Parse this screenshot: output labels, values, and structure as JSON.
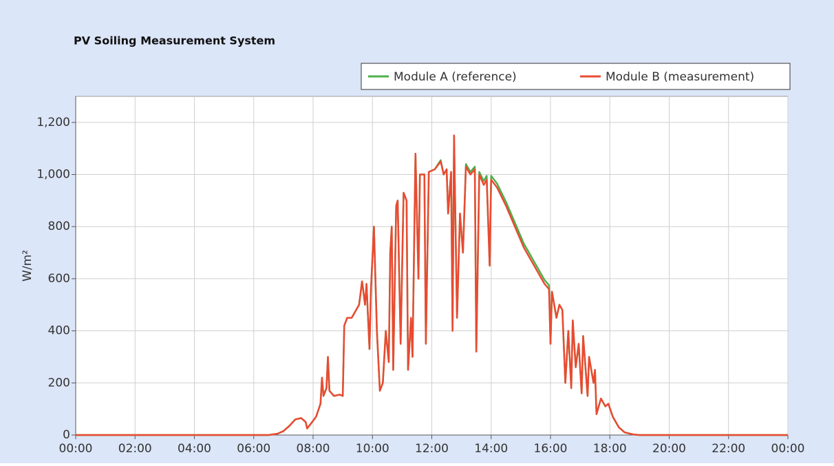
{
  "chart_data": {
    "type": "line",
    "title": "PV Soiling Measurement System",
    "ylabel": "W/m²",
    "x": [
      0,
      6.5,
      6.8,
      7.0,
      7.2,
      7.4,
      7.6,
      7.75,
      7.8,
      7.9,
      8.1,
      8.25,
      8.3,
      8.35,
      8.45,
      8.5,
      8.55,
      8.7,
      8.9,
      9.0,
      9.05,
      9.15,
      9.3,
      9.45,
      9.55,
      9.65,
      9.75,
      9.8,
      9.9,
      9.95,
      10.05,
      10.15,
      10.25,
      10.35,
      10.45,
      10.55,
      10.6,
      10.65,
      10.7,
      10.8,
      10.85,
      10.95,
      11.05,
      11.15,
      11.2,
      11.3,
      11.35,
      11.45,
      11.55,
      11.6,
      11.75,
      11.8,
      11.9,
      12.1,
      12.3,
      12.4,
      12.5,
      12.55,
      12.65,
      12.7,
      12.75,
      12.85,
      12.95,
      13.05,
      13.15,
      13.3,
      13.45,
      13.5,
      13.6,
      13.75,
      13.85,
      13.95,
      14.0,
      14.2,
      14.5,
      14.8,
      15.1,
      15.4,
      15.8,
      15.95,
      16.0,
      16.05,
      16.2,
      16.3,
      16.4,
      16.5,
      16.6,
      16.7,
      16.75,
      16.85,
      16.95,
      17.05,
      17.1,
      17.25,
      17.3,
      17.45,
      17.5,
      17.55,
      17.7,
      17.85,
      17.95,
      18.1,
      18.3,
      18.5,
      18.8,
      19.0,
      24
    ],
    "series": [
      {
        "name": "Module A (reference)",
        "color": "#4cb04c",
        "values": [
          0,
          0,
          5,
          15,
          35,
          60,
          65,
          50,
          25,
          40,
          70,
          120,
          220,
          150,
          180,
          300,
          170,
          150,
          155,
          150,
          420,
          450,
          450,
          480,
          500,
          590,
          500,
          580,
          330,
          560,
          800,
          400,
          170,
          200,
          400,
          280,
          700,
          800,
          250,
          880,
          900,
          350,
          930,
          900,
          250,
          450,
          300,
          1080,
          600,
          1000,
          1000,
          350,
          1010,
          1020,
          1055,
          1000,
          1020,
          850,
          1010,
          400,
          1150,
          450,
          850,
          700,
          1040,
          1010,
          1030,
          320,
          1010,
          975,
          995,
          650,
          995,
          965,
          895,
          815,
          735,
          675,
          595,
          575,
          350,
          550,
          450,
          500,
          480,
          200,
          400,
          180,
          440,
          260,
          350,
          160,
          380,
          150,
          300,
          200,
          250,
          80,
          140,
          110,
          120,
          70,
          30,
          10,
          2,
          0,
          0
        ]
      },
      {
        "name": "Module B (measurement)",
        "color": "#ea4a32",
        "values": [
          0,
          0,
          5,
          15,
          35,
          60,
          65,
          50,
          25,
          40,
          70,
          120,
          220,
          150,
          180,
          300,
          170,
          150,
          155,
          150,
          420,
          450,
          450,
          480,
          500,
          590,
          500,
          580,
          330,
          560,
          800,
          400,
          170,
          200,
          400,
          280,
          700,
          800,
          250,
          880,
          900,
          350,
          930,
          900,
          250,
          450,
          300,
          1080,
          600,
          1000,
          1000,
          350,
          1010,
          1020,
          1050,
          1000,
          1020,
          850,
          1010,
          400,
          1150,
          450,
          850,
          700,
          1030,
          1000,
          1020,
          320,
          1000,
          960,
          980,
          650,
          980,
          950,
          880,
          800,
          720,
          660,
          580,
          560,
          350,
          550,
          450,
          500,
          480,
          200,
          400,
          180,
          440,
          260,
          350,
          160,
          380,
          150,
          300,
          200,
          250,
          80,
          140,
          110,
          120,
          70,
          30,
          10,
          2,
          0,
          0
        ]
      }
    ],
    "xlim": [
      0,
      24
    ],
    "xticks": [
      {
        "value": 0,
        "label": "00:00"
      },
      {
        "value": 2,
        "label": "02:00"
      },
      {
        "value": 4,
        "label": "04:00"
      },
      {
        "value": 6,
        "label": "06:00"
      },
      {
        "value": 8,
        "label": "08:00"
      },
      {
        "value": 10,
        "label": "10:00"
      },
      {
        "value": 12,
        "label": "12:00"
      },
      {
        "value": 14,
        "label": "14:00"
      },
      {
        "value": 16,
        "label": "16:00"
      },
      {
        "value": 18,
        "label": "18:00"
      },
      {
        "value": 20,
        "label": "20:00"
      },
      {
        "value": 22,
        "label": "22:00"
      },
      {
        "value": 24,
        "label": "00:00"
      }
    ],
    "ylim": [
      0,
      1300
    ],
    "yticks": [
      0,
      200,
      400,
      600,
      800,
      {
        "value": 1000,
        "label": "1,000"
      },
      {
        "value": 1200,
        "label": "1,200"
      }
    ],
    "grid": true,
    "legend": "top right"
  }
}
